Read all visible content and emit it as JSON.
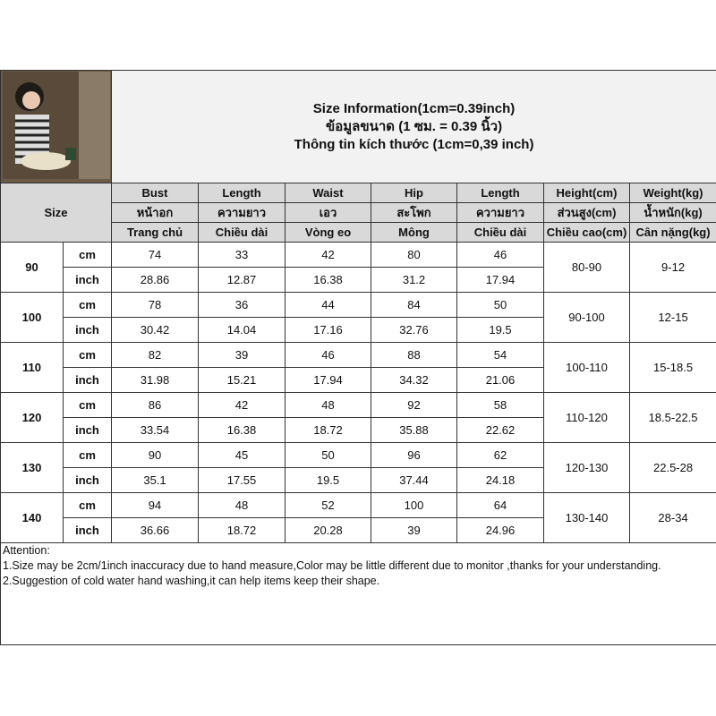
{
  "title": {
    "en": "Size Information(1cm=0.39inch)",
    "th": "ข้อมูลขนาด (1 ซม. = 0.39 นิ้ว)",
    "vi": "Thông tin kích thước (1cm=0,39 inch)"
  },
  "size_label": "Size",
  "columns": [
    {
      "en": "Bust",
      "th": "หน้าอก",
      "vi": "Trang chủ"
    },
    {
      "en": "Length",
      "th": "ความยาว",
      "vi": "Chiều dài"
    },
    {
      "en": "Waist",
      "th": "เอว",
      "vi": "Vòng eo"
    },
    {
      "en": "Hip",
      "th": "สะโพก",
      "vi": "Mông"
    },
    {
      "en": "Length",
      "th": "ความยาว",
      "vi": "Chiều dài"
    },
    {
      "en": "Height(cm)",
      "th": "ส่วนสูง(cm)",
      "vi": "Chiều cao(cm)"
    },
    {
      "en": "Weight(kg)",
      "th": "น้ำหนัก(kg)",
      "vi": "Cân nặng(kg)"
    }
  ],
  "units": {
    "cm": "cm",
    "inch": "inch"
  },
  "rows": [
    {
      "size": "90",
      "cm": [
        "74",
        "33",
        "42",
        "80",
        "46"
      ],
      "inch": [
        "28.86",
        "12.87",
        "16.38",
        "31.2",
        "17.94"
      ],
      "height": "80-90",
      "weight": "9-12"
    },
    {
      "size": "100",
      "cm": [
        "78",
        "36",
        "44",
        "84",
        "50"
      ],
      "inch": [
        "30.42",
        "14.04",
        "17.16",
        "32.76",
        "19.5"
      ],
      "height": "90-100",
      "weight": "12-15"
    },
    {
      "size": "110",
      "cm": [
        "82",
        "39",
        "46",
        "88",
        "54"
      ],
      "inch": [
        "31.98",
        "15.21",
        "17.94",
        "34.32",
        "21.06"
      ],
      "height": "100-110",
      "weight": "15-18.5"
    },
    {
      "size": "120",
      "cm": [
        "86",
        "42",
        "48",
        "92",
        "58"
      ],
      "inch": [
        "33.54",
        "16.38",
        "18.72",
        "35.88",
        "22.62"
      ],
      "height": "110-120",
      "weight": "18.5-22.5"
    },
    {
      "size": "130",
      "cm": [
        "90",
        "45",
        "50",
        "96",
        "62"
      ],
      "inch": [
        "35.1",
        "17.55",
        "19.5",
        "37.44",
        "24.18"
      ],
      "height": "120-130",
      "weight": "22.5-28"
    },
    {
      "size": "140",
      "cm": [
        "94",
        "48",
        "52",
        "100",
        "64"
      ],
      "inch": [
        "36.66",
        "18.72",
        "20.28",
        "39",
        "24.96"
      ],
      "height": "130-140",
      "weight": "28-34"
    }
  ],
  "attention": {
    "heading": "Attention:",
    "lines": [
      "1.Size may be 2cm/1inch inaccuracy due to hand measure,Color may be little different due to monitor ,thanks for your understanding.",
      "2.Suggestion of cold water hand washing,it can help items keep their shape."
    ]
  }
}
